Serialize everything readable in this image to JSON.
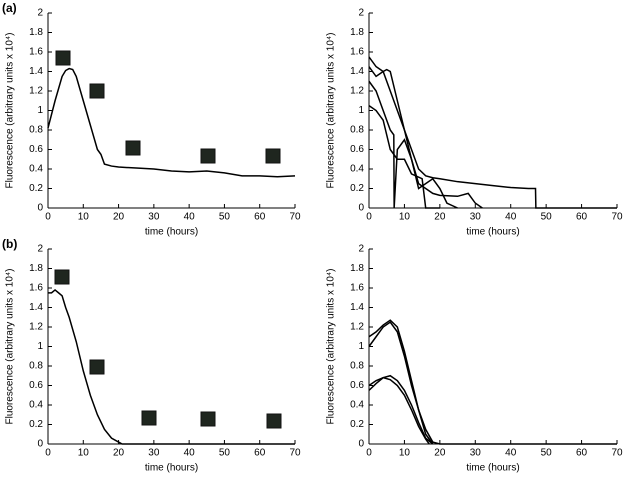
{
  "chart_data": [
    {
      "type": "line",
      "panel_label": "(a)",
      "xlabel": "time (hours)",
      "ylabel": "Fluorescence (arbitrary units x 10⁴)",
      "xlim": [
        0,
        70
      ],
      "xticks": [
        0,
        10,
        20,
        30,
        40,
        50,
        60,
        70
      ],
      "ylim": [
        0,
        2
      ],
      "yticks": [
        0,
        0.2,
        0.4,
        0.6,
        0.8,
        1,
        1.2,
        1.4,
        1.6,
        1.8,
        2
      ],
      "series": [
        {
          "color": "#000000",
          "x": [
            0,
            2,
            4,
            5,
            6,
            7,
            8,
            10,
            12,
            14,
            15,
            16,
            18,
            20,
            25,
            30,
            35,
            40,
            45,
            50,
            55,
            60,
            65,
            70
          ],
          "values": [
            0.82,
            1.1,
            1.35,
            1.41,
            1.43,
            1.42,
            1.35,
            1.1,
            0.85,
            0.6,
            0.55,
            0.45,
            0.43,
            0.42,
            0.41,
            0.4,
            0.38,
            0.37,
            0.38,
            0.36,
            0.33,
            0.33,
            0.32,
            0.33
          ]
        }
      ]
    },
    {
      "type": "line",
      "xlabel": "time (hours)",
      "ylabel": "Fluorescence (arbitrary units x 10⁴)",
      "xlim": [
        0,
        70
      ],
      "xticks": [
        0,
        10,
        20,
        30,
        40,
        50,
        60,
        70
      ],
      "ylim": [
        0,
        2
      ],
      "yticks": [
        0,
        0.2,
        0.4,
        0.6,
        0.8,
        1,
        1.2,
        1.4,
        1.6,
        1.8,
        2
      ],
      "series": [
        {
          "color": "#000000",
          "x": [
            0,
            2,
            4,
            6,
            8,
            10,
            12,
            14,
            16,
            18,
            20,
            25,
            30,
            35,
            40,
            45,
            47,
            47.1,
            70
          ],
          "values": [
            1.55,
            1.45,
            1.4,
            1.2,
            1.0,
            0.8,
            0.6,
            0.4,
            0.33,
            0.31,
            0.3,
            0.27,
            0.25,
            0.23,
            0.21,
            0.2,
            0.2,
            0,
            0
          ]
        },
        {
          "color": "#000000",
          "x": [
            0,
            2,
            4,
            5,
            6,
            8,
            10,
            12,
            14,
            16,
            18,
            20,
            25,
            28,
            30,
            32
          ],
          "values": [
            1.45,
            1.35,
            1.4,
            1.42,
            1.4,
            1.1,
            0.8,
            0.5,
            0.25,
            0.2,
            0.15,
            0.13,
            0.12,
            0.15,
            0.05,
            0
          ]
        },
        {
          "color": "#000000",
          "x": [
            0,
            2,
            4,
            6,
            7,
            7.1,
            8,
            10,
            12,
            14,
            16,
            18,
            20,
            22,
            25
          ],
          "values": [
            1.3,
            1.2,
            1.0,
            0.8,
            0.75,
            0,
            0.6,
            0.7,
            0.5,
            0.2,
            0.25,
            0.3,
            0.2,
            0.05,
            0
          ]
        },
        {
          "color": "#000000",
          "x": [
            0,
            2,
            4,
            6,
            8,
            10,
            12,
            15,
            16,
            18,
            20
          ],
          "values": [
            1.05,
            1.0,
            0.9,
            0.6,
            0.5,
            0.5,
            0.35,
            0.3,
            0,
            0,
            0
          ]
        }
      ]
    },
    {
      "type": "line",
      "panel_label": "(b)",
      "xlabel": "time (hours)",
      "ylabel": "Fluorescence (arbitrary units x 10⁴)",
      "xlim": [
        0,
        70
      ],
      "xticks": [
        0,
        10,
        20,
        30,
        40,
        50,
        60,
        70
      ],
      "ylim": [
        0,
        2
      ],
      "yticks": [
        0,
        0.2,
        0.4,
        0.6,
        0.8,
        1,
        1.2,
        1.4,
        1.6,
        1.8,
        2
      ],
      "series": [
        {
          "color": "#000000",
          "x": [
            0,
            1,
            2,
            3,
            4,
            5,
            6,
            8,
            10,
            12,
            14,
            16,
            18,
            20,
            21,
            25,
            30,
            35,
            40,
            50,
            60,
            70
          ],
          "values": [
            1.55,
            1.55,
            1.58,
            1.55,
            1.52,
            1.4,
            1.3,
            1.05,
            0.75,
            0.5,
            0.3,
            0.15,
            0.06,
            0.02,
            0,
            0,
            0,
            0,
            0,
            0,
            0,
            0
          ]
        }
      ]
    },
    {
      "type": "line",
      "xlabel": "time (hours)",
      "ylabel": "Fluorescence (arbitrary units x 10⁴)",
      "xlim": [
        0,
        70
      ],
      "xticks": [
        0,
        10,
        20,
        30,
        40,
        50,
        60,
        70
      ],
      "ylim": [
        0,
        2
      ],
      "yticks": [
        0,
        0.2,
        0.4,
        0.6,
        0.8,
        1,
        1.2,
        1.4,
        1.6,
        1.8,
        2
      ],
      "series": [
        {
          "color": "#000000",
          "x": [
            0,
            2,
            4,
            6,
            8,
            10,
            12,
            14,
            16,
            18,
            20,
            70
          ],
          "values": [
            1.0,
            1.1,
            1.2,
            1.25,
            1.15,
            0.9,
            0.6,
            0.35,
            0.15,
            0.02,
            0,
            0
          ]
        },
        {
          "color": "#000000",
          "x": [
            0,
            2,
            4,
            6,
            8,
            10,
            12,
            14,
            16,
            18
          ],
          "values": [
            1.1,
            1.15,
            1.22,
            1.27,
            1.2,
            0.95,
            0.65,
            0.35,
            0.1,
            0
          ]
        },
        {
          "color": "#000000",
          "x": [
            0,
            2,
            4,
            6,
            8,
            10,
            12,
            14,
            16,
            18
          ],
          "values": [
            0.55,
            0.62,
            0.68,
            0.7,
            0.65,
            0.55,
            0.4,
            0.22,
            0.06,
            0
          ]
        },
        {
          "color": "#000000",
          "x": [
            0,
            2,
            4,
            6,
            8,
            10,
            12,
            14,
            16,
            17
          ],
          "values": [
            0.6,
            0.65,
            0.68,
            0.66,
            0.6,
            0.5,
            0.35,
            0.18,
            0.05,
            0
          ]
        }
      ]
    }
  ]
}
